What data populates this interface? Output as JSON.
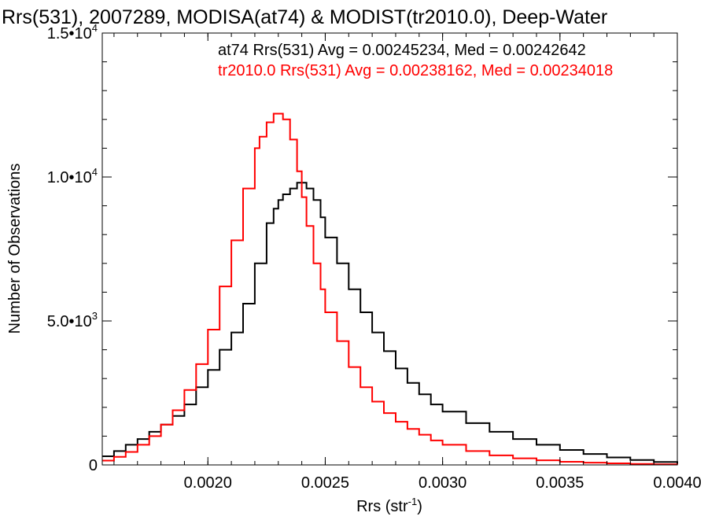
{
  "chart_data": {
    "type": "line",
    "title": "Rrs(531), 2007289, MODISA(at74) & MODIST(tr2010.0), Deep-Water",
    "xlabel": "Rrs (str",
    "xlabel_sup": "-1",
    "xlabel_close": ")",
    "ylabel": "Number of Observations",
    "xlim": [
      0.00155,
      0.004
    ],
    "ylim": [
      0,
      15000
    ],
    "xticks": [
      {
        "value": 0.002,
        "label": "0.0020"
      },
      {
        "value": 0.0025,
        "label": "0.0025"
      },
      {
        "value": 0.003,
        "label": "0.0030"
      },
      {
        "value": 0.0035,
        "label": "0.0035"
      },
      {
        "value": 0.004,
        "label": "0.0040"
      }
    ],
    "yticks": [
      {
        "value": 0,
        "label": "0",
        "sup": ""
      },
      {
        "value": 5000,
        "label": "5.0•10",
        "sup": "3"
      },
      {
        "value": 10000,
        "label": "1.0•10",
        "sup": "4"
      },
      {
        "value": 15000,
        "label": "1.5•10",
        "sup": "4"
      }
    ],
    "grid": false,
    "annotations": [
      {
        "text": "at74 Rrs(531) Avg = 0.00245234, Med = 0.00242642",
        "color": "#000000"
      },
      {
        "text": "tr2010.0 Rrs(531) Avg = 0.00238162, Med = 0.00234018",
        "color": "#ff0000"
      }
    ],
    "series": [
      {
        "color": "#000000",
        "x": [
          0.00155,
          0.0016,
          0.00165,
          0.0017,
          0.00175,
          0.0018,
          0.00185,
          0.0019,
          0.00195,
          0.002,
          0.00205,
          0.0021,
          0.00215,
          0.0022,
          0.00225,
          0.00228,
          0.0023,
          0.00232,
          0.00235,
          0.00238,
          0.0024,
          0.00242,
          0.00245,
          0.00248,
          0.0025,
          0.00255,
          0.0026,
          0.00265,
          0.0027,
          0.00275,
          0.0028,
          0.00285,
          0.0029,
          0.00295,
          0.003,
          0.0031,
          0.0032,
          0.0033,
          0.0034,
          0.0035,
          0.0036,
          0.0037,
          0.0038,
          0.0039,
          0.004
        ],
        "y": [
          300,
          480,
          700,
          900,
          1150,
          1400,
          1700,
          2100,
          2700,
          3300,
          4000,
          4600,
          5600,
          7000,
          8400,
          8900,
          9200,
          9400,
          9600,
          9800,
          9800,
          9600,
          9200,
          8600,
          7900,
          7000,
          6100,
          5300,
          4600,
          3950,
          3350,
          2850,
          2450,
          2100,
          1850,
          1450,
          1150,
          900,
          700,
          520,
          380,
          260,
          170,
          100,
          50
        ]
      },
      {
        "color": "#ff0000",
        "x": [
          0.00155,
          0.0016,
          0.00165,
          0.0017,
          0.00175,
          0.0018,
          0.00185,
          0.0019,
          0.00195,
          0.002,
          0.00205,
          0.0021,
          0.00215,
          0.0022,
          0.00222,
          0.00225,
          0.00228,
          0.0023,
          0.00232,
          0.00235,
          0.00238,
          0.0024,
          0.00242,
          0.00245,
          0.00248,
          0.0025,
          0.00255,
          0.0026,
          0.00265,
          0.0027,
          0.00275,
          0.0028,
          0.00285,
          0.0029,
          0.00295,
          0.003,
          0.0031,
          0.0032,
          0.0033,
          0.0034,
          0.0035,
          0.0036,
          0.0037,
          0.0038,
          0.0039,
          0.004
        ],
        "y": [
          150,
          280,
          450,
          700,
          1000,
          1400,
          1900,
          2600,
          3500,
          4700,
          6200,
          7800,
          9600,
          11000,
          11400,
          11900,
          12200,
          12200,
          12000,
          11300,
          10200,
          9300,
          8300,
          7000,
          6100,
          5300,
          4300,
          3400,
          2700,
          2200,
          1800,
          1500,
          1250,
          1050,
          850,
          700,
          480,
          330,
          230,
          160,
          110,
          80,
          55,
          35,
          20,
          10
        ]
      }
    ]
  }
}
